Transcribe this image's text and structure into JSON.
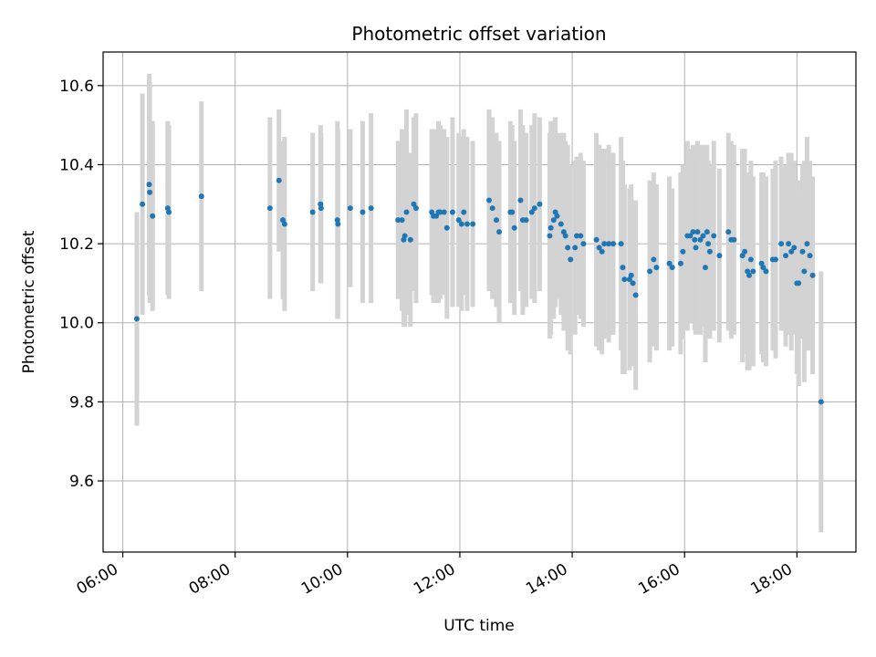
{
  "chart_data": {
    "type": "scatter",
    "title": "Photometric offset variation",
    "xlabel": "UTC time",
    "ylabel": "Photometric offset",
    "x_unit": "hours UTC",
    "xlim": [
      5.65,
      19.05
    ],
    "ylim": [
      9.42,
      10.685
    ],
    "xticks": [
      6,
      8,
      10,
      12,
      14,
      16,
      18
    ],
    "xtick_labels": [
      "06:00",
      "08:00",
      "10:00",
      "12:00",
      "14:00",
      "16:00",
      "18:00"
    ],
    "yticks": [
      9.6,
      9.8,
      10.0,
      10.2,
      10.4,
      10.6
    ],
    "ytick_labels": [
      "9.6",
      "9.8",
      "10.0",
      "10.2",
      "10.4",
      "10.6"
    ],
    "grid": true,
    "colors": {
      "point": "#1f77b4",
      "errorbar": "#d3d3d3",
      "grid": "#b0b0b0"
    },
    "series": [
      {
        "x": [
          6.25,
          6.35,
          6.47,
          6.48,
          6.53,
          6.8,
          6.82,
          7.4,
          8.62,
          8.78,
          8.85,
          8.88,
          9.38,
          9.52,
          9.53,
          9.82,
          9.83,
          10.05,
          10.27,
          10.42,
          10.9,
          10.97,
          11.0,
          11.02,
          11.05,
          11.12,
          11.18,
          11.22,
          11.5,
          11.53,
          11.58,
          11.62,
          11.65,
          11.72,
          11.77,
          11.87,
          11.98,
          12.03,
          12.07,
          12.13,
          12.23,
          12.52,
          12.58,
          12.65,
          12.7,
          12.9,
          12.93,
          12.97,
          13.08,
          13.12,
          13.18,
          13.28,
          13.33,
          13.42,
          13.6,
          13.62,
          13.67,
          13.7,
          13.73,
          13.8,
          13.85,
          13.88,
          13.92,
          13.97,
          14.05,
          14.08,
          14.15,
          14.2,
          14.43,
          14.48,
          14.53,
          14.57,
          14.65,
          14.73,
          14.87,
          14.9,
          14.93,
          15.02,
          15.05,
          15.08,
          15.13,
          15.38,
          15.45,
          15.5,
          15.73,
          15.78,
          15.93,
          15.97,
          16.05,
          16.1,
          16.15,
          16.18,
          16.2,
          16.23,
          16.28,
          16.33,
          16.37,
          16.4,
          16.42,
          16.45,
          16.52,
          16.62,
          16.78,
          16.83,
          16.88,
          17.03,
          17.07,
          17.12,
          17.15,
          17.18,
          17.22,
          17.37,
          17.4,
          17.45,
          17.57,
          17.62,
          17.72,
          17.8,
          17.85,
          17.9,
          17.95,
          18.0,
          18.03,
          18.1,
          18.13,
          18.18,
          18.23,
          18.28,
          18.43
        ],
        "y": [
          10.01,
          10.3,
          10.35,
          10.33,
          10.27,
          10.29,
          10.28,
          10.32,
          10.29,
          10.36,
          10.26,
          10.25,
          10.28,
          10.3,
          10.29,
          10.26,
          10.25,
          10.29,
          10.28,
          10.29,
          10.26,
          10.26,
          10.21,
          10.22,
          10.28,
          10.21,
          10.3,
          10.29,
          10.28,
          10.27,
          10.27,
          10.28,
          10.28,
          10.28,
          10.24,
          10.28,
          10.26,
          10.25,
          10.28,
          10.25,
          10.25,
          10.31,
          10.29,
          10.26,
          10.23,
          10.28,
          10.28,
          10.24,
          10.31,
          10.26,
          10.26,
          10.28,
          10.29,
          10.3,
          10.22,
          10.24,
          10.26,
          10.28,
          10.27,
          10.25,
          10.23,
          10.22,
          10.19,
          10.16,
          10.19,
          10.22,
          10.22,
          10.2,
          10.21,
          10.19,
          10.18,
          10.2,
          10.2,
          10.2,
          10.2,
          10.14,
          10.11,
          10.11,
          10.12,
          10.1,
          10.07,
          10.13,
          10.16,
          10.14,
          10.15,
          10.14,
          10.15,
          10.18,
          10.22,
          10.22,
          10.23,
          10.21,
          10.19,
          10.23,
          10.21,
          10.22,
          10.14,
          10.23,
          10.2,
          10.18,
          10.22,
          10.17,
          10.23,
          10.21,
          10.21,
          10.17,
          10.18,
          10.13,
          10.12,
          10.16,
          10.13,
          10.15,
          10.14,
          10.13,
          10.16,
          10.16,
          10.2,
          10.17,
          10.2,
          10.18,
          10.19,
          10.1,
          10.1,
          10.18,
          10.13,
          10.2,
          10.17,
          10.12,
          9.8
        ],
        "yerr": [
          0.27,
          0.28,
          0.28,
          0.28,
          0.24,
          0.22,
          0.22,
          0.24,
          0.23,
          0.18,
          0.2,
          0.22,
          0.2,
          0.2,
          0.19,
          0.25,
          0.24,
          0.2,
          0.23,
          0.24,
          0.2,
          0.23,
          0.22,
          0.23,
          0.26,
          0.22,
          0.22,
          0.24,
          0.21,
          0.22,
          0.22,
          0.23,
          0.22,
          0.21,
          0.23,
          0.24,
          0.22,
          0.22,
          0.21,
          0.22,
          0.21,
          0.23,
          0.23,
          0.22,
          0.23,
          0.23,
          0.22,
          0.22,
          0.23,
          0.24,
          0.22,
          0.22,
          0.24,
          0.22,
          0.26,
          0.27,
          0.25,
          0.24,
          0.21,
          0.23,
          0.25,
          0.24,
          0.26,
          0.24,
          0.22,
          0.2,
          0.21,
          0.21,
          0.27,
          0.26,
          0.26,
          0.24,
          0.25,
          0.23,
          0.27,
          0.27,
          0.24,
          0.23,
          0.23,
          0.21,
          0.24,
          0.23,
          0.22,
          0.21,
          0.22,
          0.2,
          0.23,
          0.22,
          0.24,
          0.22,
          0.22,
          0.23,
          0.22,
          0.23,
          0.24,
          0.23,
          0.24,
          0.22,
          0.21,
          0.22,
          0.24,
          0.22,
          0.25,
          0.25,
          0.24,
          0.27,
          0.26,
          0.25,
          0.24,
          0.25,
          0.24,
          0.23,
          0.24,
          0.24,
          0.23,
          0.25,
          0.22,
          0.23,
          0.23,
          0.25,
          0.22,
          0.23,
          0.26,
          0.22,
          0.28,
          0.27,
          0.24,
          0.25,
          0.33
        ]
      }
    ]
  }
}
